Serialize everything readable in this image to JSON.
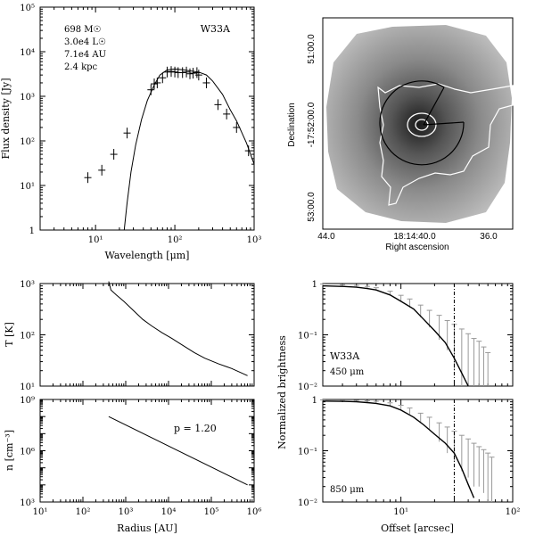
{
  "chart_data": [
    {
      "type": "line",
      "id": "sed",
      "title": "W33A",
      "annotations": [
        "698 M☉",
        "3.0e4 L☉",
        "7.1e4 AU",
        "2.4 kpc"
      ],
      "xlabel": "Wavelength [μm]",
      "ylabel": "Flux density [Jy]",
      "xscale": "log",
      "yscale": "log",
      "xlim": [
        2,
        1000
      ],
      "ylim": [
        1,
        100000
      ],
      "xticks": [
        {
          "v": 10,
          "label": "10¹"
        },
        {
          "v": 100,
          "label": "10²"
        },
        {
          "v": 1000,
          "label": "10³"
        }
      ],
      "yticks": [
        {
          "v": 1,
          "label": "1"
        },
        {
          "v": 10,
          "label": "10¹"
        },
        {
          "v": 100,
          "label": "10²"
        },
        {
          "v": 1000,
          "label": "10³"
        },
        {
          "v": 10000,
          "label": "10⁴"
        },
        {
          "v": 100000,
          "label": "10⁵"
        }
      ],
      "model": {
        "x": [
          23,
          25,
          28,
          32,
          38,
          45,
          55,
          65,
          80,
          100,
          130,
          160,
          200,
          250,
          300,
          400,
          500,
          600,
          800,
          1000
        ],
        "y": [
          1,
          4,
          20,
          80,
          300,
          800,
          1800,
          3000,
          3900,
          4100,
          3900,
          3700,
          3500,
          3000,
          2200,
          1100,
          500,
          280,
          90,
          30
        ]
      },
      "data": [
        {
          "x": 8,
          "y": 15
        },
        {
          "x": 12,
          "y": 22
        },
        {
          "x": 17,
          "y": 50
        },
        {
          "x": 25,
          "y": 150
        },
        {
          "x": 50,
          "y": 1400
        },
        {
          "x": 55,
          "y": 1900
        },
        {
          "x": 60,
          "y": 2000
        },
        {
          "x": 70,
          "y": 2600
        },
        {
          "x": 80,
          "y": 3500
        },
        {
          "x": 90,
          "y": 3600
        },
        {
          "x": 100,
          "y": 3500
        },
        {
          "x": 110,
          "y": 3400
        },
        {
          "x": 125,
          "y": 3400
        },
        {
          "x": 140,
          "y": 3500
        },
        {
          "x": 155,
          "y": 3200
        },
        {
          "x": 170,
          "y": 3300
        },
        {
          "x": 190,
          "y": 3400
        },
        {
          "x": 200,
          "y": 3000
        },
        {
          "x": 250,
          "y": 2000
        },
        {
          "x": 350,
          "y": 650
        },
        {
          "x": 450,
          "y": 400
        },
        {
          "x": 600,
          "y": 200
        },
        {
          "x": 850,
          "y": 60
        }
      ]
    },
    {
      "type": "heatmap",
      "id": "map",
      "xlabel": "Right ascension",
      "ylabel": "Declination",
      "xticks": [
        "44.0",
        "18:14:40.0",
        "36.0"
      ],
      "yticks": [
        "51:00.0",
        "-17:52:00.0",
        "53:00.0"
      ]
    },
    {
      "type": "line",
      "id": "temperature",
      "ylabel": "T [K]",
      "xscale": "log",
      "yscale": "log",
      "xlim": [
        10,
        1000000
      ],
      "ylim": [
        10,
        1000
      ],
      "xticks": [
        {
          "v": 10,
          "label": "10¹"
        },
        {
          "v": 100,
          "label": "10²"
        },
        {
          "v": 1000,
          "label": "10³"
        },
        {
          "v": 10000,
          "label": "10⁴"
        },
        {
          "v": 100000,
          "label": "10⁵"
        },
        {
          "v": 1000000,
          "label": "10⁶"
        }
      ],
      "yticks": [
        {
          "v": 10,
          "label": "10¹"
        },
        {
          "v": 100,
          "label": "10²"
        },
        {
          "v": 1000,
          "label": "10³"
        }
      ],
      "x": [
        400,
        450,
        600,
        900,
        1500,
        2500,
        4000,
        7000,
        12000,
        20000,
        40000,
        70000,
        150000,
        300000,
        700000
      ],
      "y": [
        1100,
        750,
        600,
        450,
        300,
        200,
        150,
        110,
        85,
        65,
        45,
        35,
        27,
        22,
        16
      ]
    },
    {
      "type": "line",
      "id": "density",
      "xlabel": "Radius [AU]",
      "ylabel": "n [cm⁻³]",
      "label": "p = 1.20",
      "xscale": "log",
      "yscale": "log",
      "xlim": [
        10,
        1000000
      ],
      "ylim": [
        1000,
        1000000000
      ],
      "xticks": [
        {
          "v": 10,
          "label": "10¹"
        },
        {
          "v": 100,
          "label": "10²"
        },
        {
          "v": 1000,
          "label": "10³"
        },
        {
          "v": 10000,
          "label": "10⁴"
        },
        {
          "v": 100000,
          "label": "10⁵"
        },
        {
          "v": 1000000,
          "label": "10⁶"
        }
      ],
      "yticks": [
        {
          "v": 1000,
          "label": "10³"
        },
        {
          "v": 1000000,
          "label": "10⁶"
        },
        {
          "v": 1000000000,
          "label": "10⁹"
        }
      ],
      "x": [
        400,
        700000
      ],
      "y": [
        100000000,
        10000
      ]
    },
    {
      "type": "line",
      "id": "profile450",
      "title": "W33A",
      "label": "450 μm",
      "ylabel": "Normalized brightness",
      "xscale": "log",
      "yscale": "log",
      "xlim": [
        2,
        100
      ],
      "ylim": [
        0.01,
        1
      ],
      "xticks": [
        {
          "v": 10,
          "label": "10¹"
        },
        {
          "v": 100,
          "label": "10²"
        }
      ],
      "yticks": [
        {
          "v": 0.01,
          "label": "10⁻²"
        },
        {
          "v": 0.1,
          "label": "10⁻¹"
        },
        {
          "v": 1,
          "label": "1"
        }
      ],
      "beam_offset": 30,
      "model": {
        "x": [
          2,
          3,
          4,
          5,
          6,
          8,
          10,
          13,
          16,
          20,
          25,
          30,
          35,
          40
        ],
        "y": [
          0.9,
          0.88,
          0.85,
          0.8,
          0.75,
          0.6,
          0.45,
          0.32,
          0.2,
          0.12,
          0.07,
          0.035,
          0.018,
          0.01
        ]
      },
      "data": [
        {
          "x": 2,
          "y": 0.95,
          "e": 0.03
        },
        {
          "x": 3,
          "y": 0.92,
          "e": 0.03
        },
        {
          "x": 4,
          "y": 0.88,
          "e": 0.04
        },
        {
          "x": 5,
          "y": 0.83,
          "e": 0.05
        },
        {
          "x": 6,
          "y": 0.78,
          "e": 0.05
        },
        {
          "x": 8,
          "y": 0.65,
          "e": 0.06
        },
        {
          "x": 10,
          "y": 0.52,
          "e": 0.07
        },
        {
          "x": 12,
          "y": 0.42,
          "e": 0.08
        },
        {
          "x": 15,
          "y": 0.3,
          "e": 0.08
        },
        {
          "x": 18,
          "y": 0.22,
          "e": 0.08
        },
        {
          "x": 22,
          "y": 0.16,
          "e": 0.08
        },
        {
          "x": 26,
          "y": 0.12,
          "e": 0.07
        },
        {
          "x": 30,
          "y": 0.09,
          "e": 0.07
        },
        {
          "x": 35,
          "y": 0.07,
          "e": 0.06
        },
        {
          "x": 40,
          "y": 0.055,
          "e": 0.05
        },
        {
          "x": 45,
          "y": 0.045,
          "e": 0.04
        },
        {
          "x": 50,
          "y": 0.04,
          "e": 0.035
        },
        {
          "x": 55,
          "y": 0.03,
          "e": 0.028
        },
        {
          "x": 60,
          "y": 0.025,
          "e": 0.02
        }
      ]
    },
    {
      "type": "line",
      "id": "profile850",
      "label": "850 μm",
      "xlabel": "Offset [arcsec]",
      "xscale": "log",
      "yscale": "log",
      "xlim": [
        2,
        100
      ],
      "ylim": [
        0.01,
        1
      ],
      "xticks": [
        {
          "v": 10,
          "label": "10¹"
        },
        {
          "v": 100,
          "label": "10²"
        }
      ],
      "yticks": [
        {
          "v": 0.01,
          "label": "10⁻²"
        },
        {
          "v": 0.1,
          "label": "10⁻¹"
        },
        {
          "v": 1,
          "label": "1"
        }
      ],
      "beam_offset": 30,
      "model": {
        "x": [
          2,
          3,
          4,
          5,
          6,
          8,
          10,
          13,
          16,
          20,
          25,
          30,
          35,
          40,
          45
        ],
        "y": [
          0.93,
          0.92,
          0.9,
          0.87,
          0.84,
          0.75,
          0.62,
          0.45,
          0.32,
          0.21,
          0.14,
          0.09,
          0.045,
          0.022,
          0.012
        ]
      },
      "data": [
        {
          "x": 2,
          "y": 0.96,
          "e": 0.02
        },
        {
          "x": 3,
          "y": 0.95,
          "e": 0.02
        },
        {
          "x": 4,
          "y": 0.93,
          "e": 0.03
        },
        {
          "x": 5,
          "y": 0.9,
          "e": 0.04
        },
        {
          "x": 6,
          "y": 0.87,
          "e": 0.05
        },
        {
          "x": 8,
          "y": 0.8,
          "e": 0.06
        },
        {
          "x": 10,
          "y": 0.7,
          "e": 0.07
        },
        {
          "x": 12,
          "y": 0.6,
          "e": 0.08
        },
        {
          "x": 15,
          "y": 0.45,
          "e": 0.09
        },
        {
          "x": 18,
          "y": 0.35,
          "e": 0.1
        },
        {
          "x": 22,
          "y": 0.25,
          "e": 0.1
        },
        {
          "x": 26,
          "y": 0.19,
          "e": 0.1
        },
        {
          "x": 30,
          "y": 0.15,
          "e": 0.09
        },
        {
          "x": 35,
          "y": 0.12,
          "e": 0.08
        },
        {
          "x": 40,
          "y": 0.1,
          "e": 0.07
        },
        {
          "x": 45,
          "y": 0.08,
          "e": 0.06
        },
        {
          "x": 50,
          "y": 0.07,
          "e": 0.05
        },
        {
          "x": 55,
          "y": 0.06,
          "e": 0.045
        },
        {
          "x": 60,
          "y": 0.05,
          "e": 0.04
        },
        {
          "x": 65,
          "y": 0.04,
          "e": 0.035
        }
      ]
    }
  ]
}
